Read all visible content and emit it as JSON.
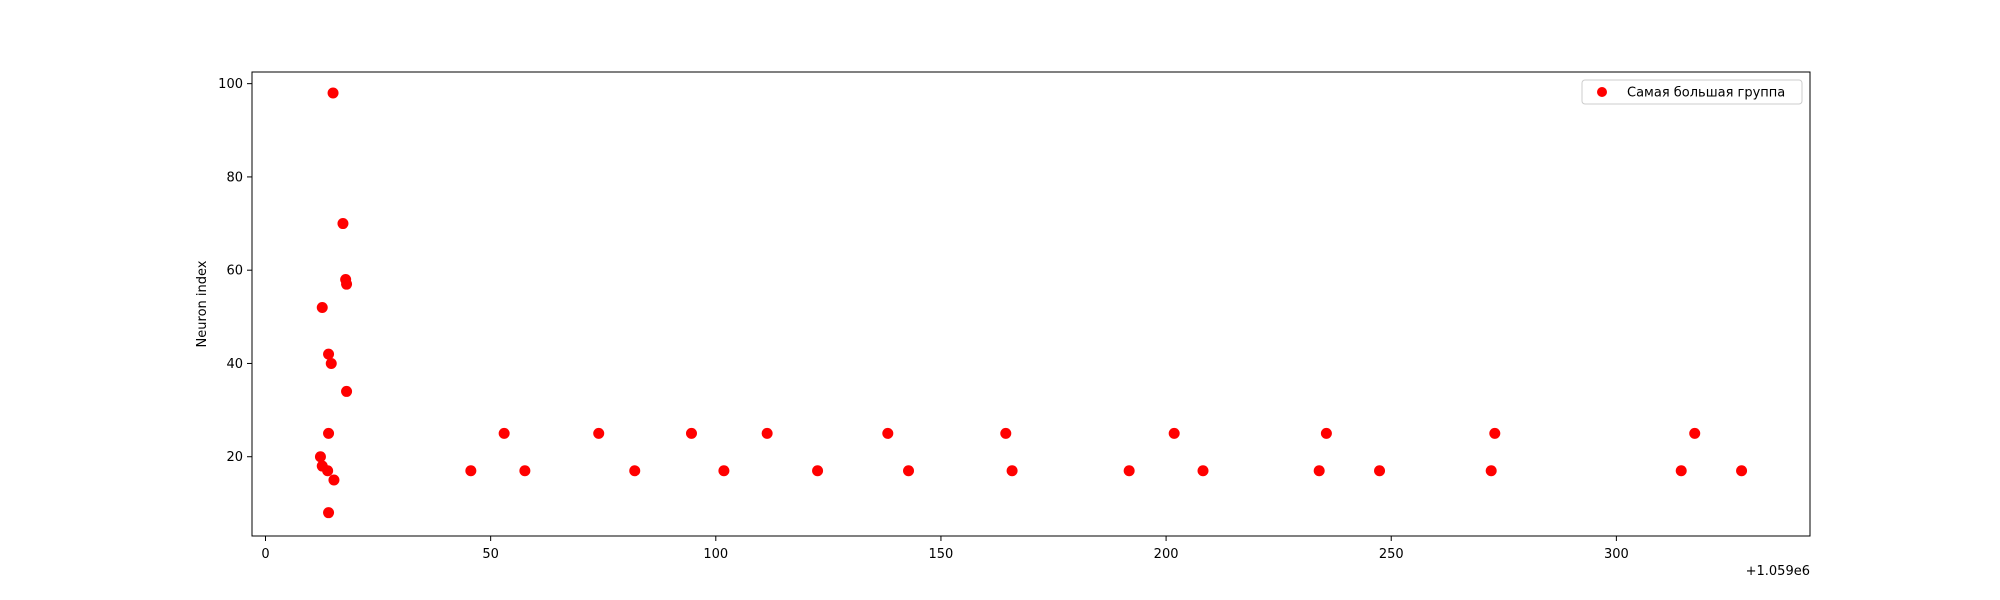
{
  "chart_data": {
    "type": "scatter",
    "title": "",
    "xlabel": "",
    "ylabel": "Neuron index",
    "x_offset_label": "+1.059e6",
    "xlim": [
      -3,
      343
    ],
    "ylim": [
      3,
      102.5
    ],
    "xticks": [
      0,
      50,
      100,
      150,
      200,
      250,
      300
    ],
    "yticks": [
      20,
      40,
      60,
      80,
      100
    ],
    "grid": false,
    "legend_position": "upper right",
    "series": [
      {
        "name": "Самая большая группа",
        "color": "#ff0000",
        "points": [
          {
            "x": 15,
            "y": 98
          },
          {
            "x": 17.2,
            "y": 70
          },
          {
            "x": 17.8,
            "y": 58
          },
          {
            "x": 18,
            "y": 57
          },
          {
            "x": 12.6,
            "y": 52
          },
          {
            "x": 14,
            "y": 42
          },
          {
            "x": 14.6,
            "y": 40
          },
          {
            "x": 18,
            "y": 34
          },
          {
            "x": 14,
            "y": 25
          },
          {
            "x": 12.2,
            "y": 20
          },
          {
            "x": 12.6,
            "y": 18
          },
          {
            "x": 13.8,
            "y": 17
          },
          {
            "x": 15.2,
            "y": 15
          },
          {
            "x": 14,
            "y": 8
          },
          {
            "x": 45.6,
            "y": 17
          },
          {
            "x": 53,
            "y": 25
          },
          {
            "x": 57.6,
            "y": 17
          },
          {
            "x": 74,
            "y": 25
          },
          {
            "x": 82,
            "y": 17
          },
          {
            "x": 94.6,
            "y": 25
          },
          {
            "x": 101.8,
            "y": 17
          },
          {
            "x": 111.4,
            "y": 25
          },
          {
            "x": 122.6,
            "y": 17
          },
          {
            "x": 138.2,
            "y": 25
          },
          {
            "x": 142.8,
            "y": 17
          },
          {
            "x": 164.4,
            "y": 25
          },
          {
            "x": 165.8,
            "y": 17
          },
          {
            "x": 191.8,
            "y": 17
          },
          {
            "x": 201.8,
            "y": 25
          },
          {
            "x": 208.2,
            "y": 17
          },
          {
            "x": 234,
            "y": 17
          },
          {
            "x": 235.6,
            "y": 25
          },
          {
            "x": 247.4,
            "y": 17
          },
          {
            "x": 272.2,
            "y": 17
          },
          {
            "x": 273,
            "y": 25
          },
          {
            "x": 314.4,
            "y": 17
          },
          {
            "x": 317.4,
            "y": 25
          },
          {
            "x": 327.8,
            "y": 17
          }
        ]
      }
    ]
  }
}
